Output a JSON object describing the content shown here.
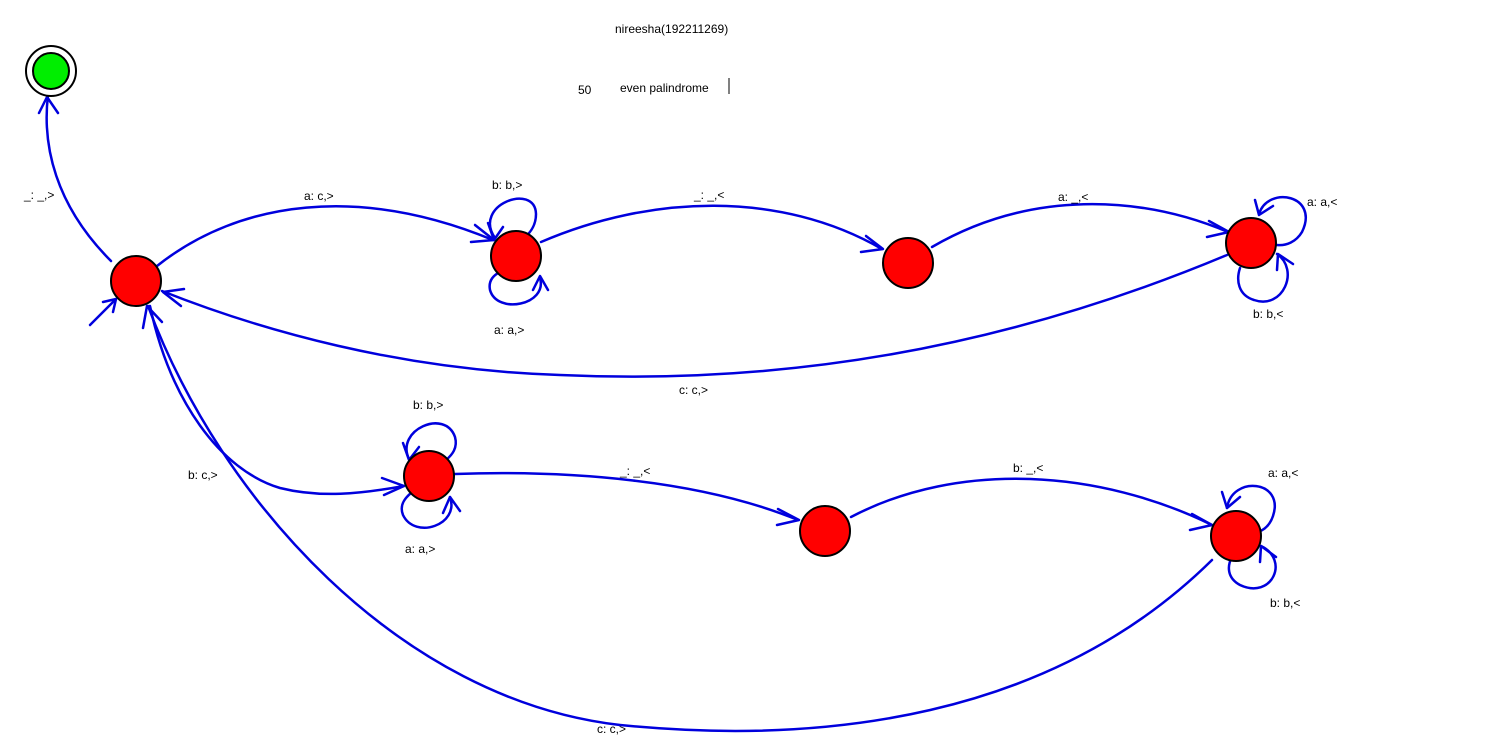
{
  "header": {
    "author": "nireesha(192211269)",
    "number": "50",
    "description": "even palindrome"
  },
  "colors": {
    "state_fill": "#ff0000",
    "final_state_fill": "#00ee00",
    "edge": "#0000dd",
    "text": "#000000"
  },
  "states": [
    {
      "id": "q0",
      "kind": "initial"
    },
    {
      "id": "q1",
      "kind": "normal"
    },
    {
      "id": "q2",
      "kind": "normal"
    },
    {
      "id": "q3",
      "kind": "normal"
    },
    {
      "id": "q4",
      "kind": "normal"
    },
    {
      "id": "q5",
      "kind": "normal"
    },
    {
      "id": "q6",
      "kind": "normal"
    },
    {
      "id": "qf",
      "kind": "final"
    }
  ],
  "transitions": [
    {
      "id": "t_q0_qf",
      "from": "q0",
      "to": "qf",
      "label": "_: _,>"
    },
    {
      "id": "t_q0_q1",
      "from": "q0",
      "to": "q1",
      "label": "a: c,>"
    },
    {
      "id": "t_q1_top",
      "from": "q1",
      "to": "q1",
      "label": "b: b,>"
    },
    {
      "id": "t_q1_bot",
      "from": "q1",
      "to": "q1",
      "label": "a: a,>"
    },
    {
      "id": "t_q1_q2",
      "from": "q1",
      "to": "q2",
      "label": "_: _,<"
    },
    {
      "id": "t_q2_q3",
      "from": "q2",
      "to": "q3",
      "label": "a: _,<"
    },
    {
      "id": "t_q3_top",
      "from": "q3",
      "to": "q3",
      "label": "a: a,<"
    },
    {
      "id": "t_q3_bot",
      "from": "q3",
      "to": "q3",
      "label": "b: b,<"
    },
    {
      "id": "t_q3_q0",
      "from": "q3",
      "to": "q0",
      "label": "c: c,>"
    },
    {
      "id": "t_q0_q4",
      "from": "q0",
      "to": "q4",
      "label": "b: c,>"
    },
    {
      "id": "t_q4_top",
      "from": "q4",
      "to": "q4",
      "label": "b: b,>"
    },
    {
      "id": "t_q4_bot",
      "from": "q4",
      "to": "q4",
      "label": "a: a,>"
    },
    {
      "id": "t_q4_q5",
      "from": "q4",
      "to": "q5",
      "label": "_: _,<"
    },
    {
      "id": "t_q5_q6",
      "from": "q5",
      "to": "q6",
      "label": "b: _,<"
    },
    {
      "id": "t_q6_top",
      "from": "q6",
      "to": "q6",
      "label": "a: a,<"
    },
    {
      "id": "t_q6_bot",
      "from": "q6",
      "to": "q6",
      "label": "b: b,<"
    },
    {
      "id": "t_q6_q0",
      "from": "q6",
      "to": "q0",
      "label": "c: c,>"
    }
  ]
}
